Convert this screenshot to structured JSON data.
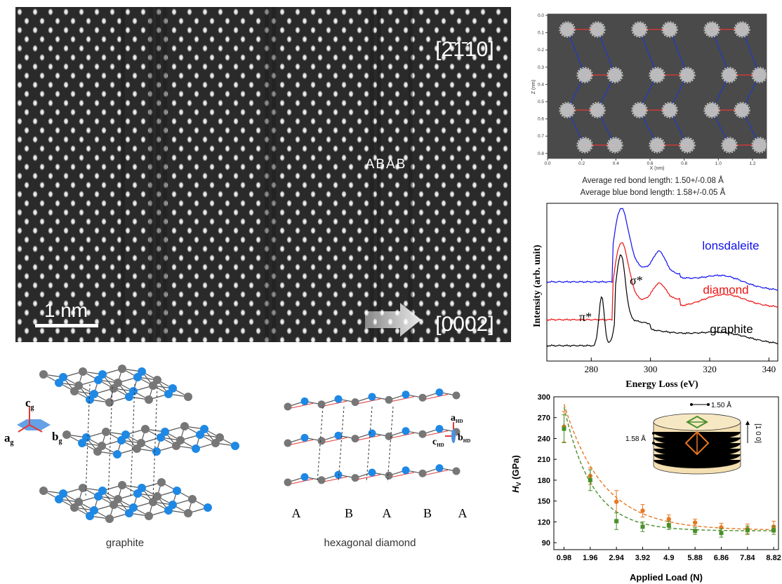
{
  "tem": {
    "zone_axis": "[2̄1̄10]",
    "stacking": "ABAB",
    "scale_bar": "1 nm",
    "growth_direction": "[0002]"
  },
  "structure_map": {
    "caption_red": "Average red bond length: 1.50+/-0.08 Å",
    "caption_blue": "Average blue bond length:  1.58+/-0.05 Å",
    "xlabel": "X (nm)",
    "ylabel": "Z (nm)",
    "x_ticks": [
      "0.0",
      "0.2",
      "0.4",
      "0.6",
      "0.8",
      "1.0",
      "1.2"
    ],
    "y_ticks": [
      "0.0",
      "0.1",
      "0.2",
      "0.3",
      "0.4",
      "0.5",
      "0.6",
      "0.7",
      "0.8"
    ],
    "colors": {
      "red_bond": "#e53935",
      "blue_bond": "#1e3cc8"
    }
  },
  "eels": {
    "ylabel": "Intensity (arb. unit)",
    "xlabel": "Energy Loss (eV)",
    "x_ticks": [
      "280",
      "300",
      "320",
      "340"
    ],
    "labels": {
      "lonsdaleite": "lonsdaleite",
      "diamond": "diamond",
      "graphite": "graphite",
      "pi": "π*",
      "sigma": "σ*"
    },
    "colors": {
      "lonsdaleite": "#1010ee",
      "diamond": "#ee1111",
      "graphite": "#000000"
    }
  },
  "diagrams": {
    "graphite_label": "graphite",
    "hex_label": "hexagonal diamond",
    "axes_g": {
      "c": "c",
      "a": "a",
      "b": "b",
      "sub": "g"
    },
    "axes_hd": {
      "a": "a",
      "b": "b",
      "c": "c",
      "sub": "HD"
    },
    "stacking_letters": [
      "A",
      "B",
      "A",
      "B",
      "A"
    ]
  },
  "chart_data": {
    "type": "scatter",
    "xlabel": "Applied Load (N)",
    "ylabel": "HV (GPa)",
    "ylabel_parts": {
      "h": "H",
      "sub": "V",
      "unit": " (GPa)"
    },
    "x": [
      0.98,
      1.96,
      2.94,
      3.92,
      4.9,
      5.88,
      6.86,
      7.84,
      8.82
    ],
    "x_tick_labels": [
      "0.98",
      "1.96",
      "2.94",
      "3.92",
      "4.9",
      "5.88",
      "6.86",
      "7.84",
      "8.82"
    ],
    "y_ticks": [
      90,
      120,
      150,
      180,
      210,
      240,
      270,
      300
    ],
    "ylim": [
      80,
      300
    ],
    "series": [
      {
        "color": "#e87722",
        "marker": "circle",
        "values": [
          257,
          186,
          149,
          136,
          124,
          119,
          112,
          110,
          113
        ],
        "errors": [
          22,
          12,
          16,
          9,
          6,
          5,
          6,
          7,
          8
        ]
      },
      {
        "color": "#4a8f2a",
        "marker": "square",
        "values": [
          254,
          180,
          121,
          113,
          115,
          107,
          104,
          108,
          108
        ],
        "errors": [
          20,
          15,
          12,
          7,
          6,
          5,
          6,
          6,
          6
        ]
      }
    ],
    "inset": {
      "a_label": "1.50 Å",
      "c_label": "1.58 Å",
      "dir_label": "[1 0 0]"
    }
  }
}
